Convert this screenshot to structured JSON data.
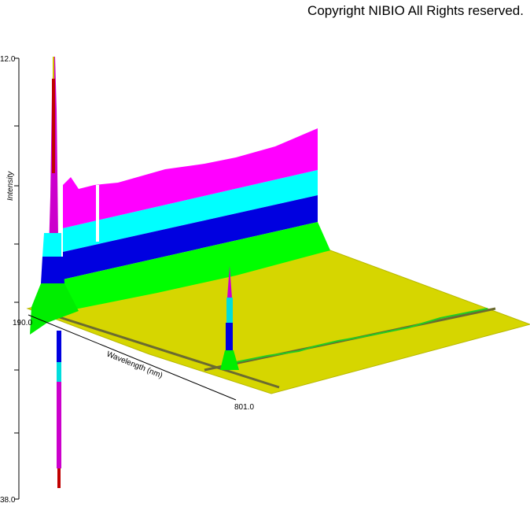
{
  "copyright": "Copyright NIBIO All Rights reserved.",
  "chart_data": {
    "type": "area",
    "axes": {
      "intensity_label": "Intensity",
      "intensity_max_label": "12.0",
      "intensity_min_label": "38.0",
      "wavelength_label": "Wavelength (nm)",
      "wavelength_start_label": "190.0",
      "wavelength_end_label": "801.0"
    },
    "band_colors": [
      "#ff00ff",
      "#00ffff",
      "#0000e0",
      "#00ff00",
      "#d8d800"
    ],
    "grid": false,
    "legend": "none"
  }
}
